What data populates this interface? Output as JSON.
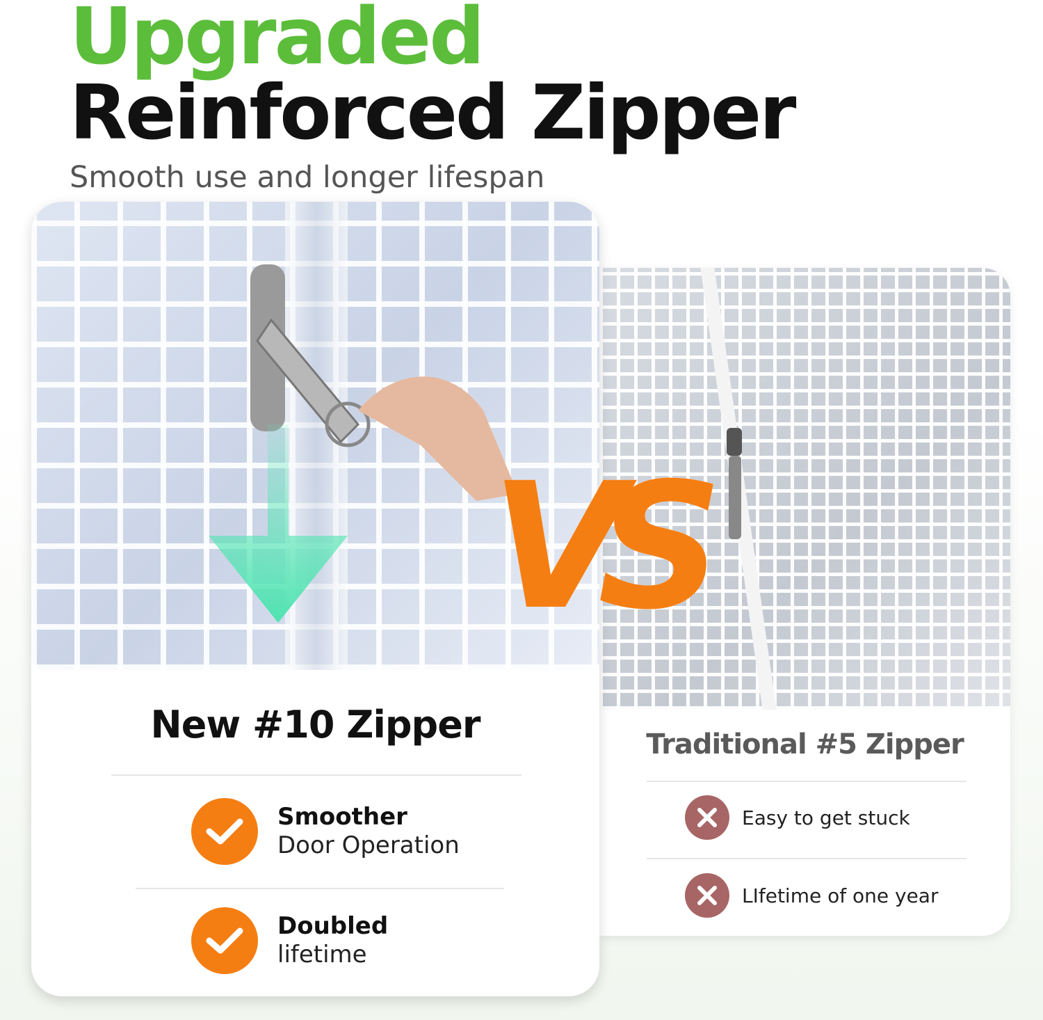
{
  "header": {
    "title_line1": "Upgraded",
    "title_line2": "Reinforced Zipper",
    "subtitle": "Smooth use and longer lifespan"
  },
  "colors": {
    "green": "#5cbd3b",
    "orange": "#f57e12",
    "x_badge": "#a86565"
  },
  "vs_label": "VS",
  "new_card": {
    "title": "New #10 Zipper",
    "features": [
      {
        "icon": "check-icon",
        "bold": "Smoother",
        "text": "Door Operation"
      },
      {
        "icon": "check-icon",
        "bold": "Doubled",
        "text": "lifetime"
      }
    ]
  },
  "old_card": {
    "title": "Traditional #5 Zipper",
    "features": [
      {
        "icon": "x-icon",
        "text": "Easy to get stuck"
      },
      {
        "icon": "x-icon",
        "text": "LIfetime of one year"
      }
    ]
  }
}
